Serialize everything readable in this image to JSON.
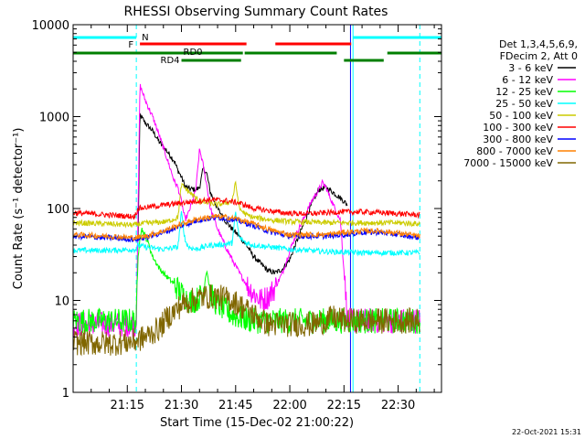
{
  "chart_data": {
    "type": "line",
    "title": "RHESSI Observing Summary Count Rates",
    "xlabel": "Start Time (15-Dec-02 21:00:22)",
    "ylabel": "Count Rate (s⁻¹ detector⁻¹)",
    "yscale": "log",
    "ylim": [
      1,
      10000
    ],
    "xlim": [
      0,
      102
    ],
    "x_unit": "minutes after 21:00:22",
    "x_ticks": [
      {
        "t": 15,
        "label": "21:15"
      },
      {
        "t": 30,
        "label": "21:30"
      },
      {
        "t": 45,
        "label": "21:45"
      },
      {
        "t": 60,
        "label": "22:00"
      },
      {
        "t": 75,
        "label": "22:15"
      },
      {
        "t": 90,
        "label": "22:30"
      }
    ],
    "y_ticks": [
      {
        "v": 1,
        "label": "1"
      },
      {
        "v": 10,
        "label": "10"
      },
      {
        "v": 100,
        "label": "100"
      },
      {
        "v": 1000,
        "label": "1000"
      },
      {
        "v": 10000,
        "label": "10000"
      }
    ],
    "legend_header": [
      "Det 1,3,4,5,6,9,",
      "FDecim 2, Att 0"
    ],
    "series": [
      {
        "name": "3 - 6 keV",
        "color": "#000000",
        "t": [
          18,
          18.5,
          20,
          22,
          24,
          26,
          28,
          29,
          30,
          31,
          32,
          34,
          35,
          36,
          37,
          38,
          40,
          42,
          44,
          46,
          48,
          50,
          52,
          54,
          56,
          58,
          60,
          62,
          64,
          66,
          68,
          70,
          72,
          74,
          76
        ],
        "v": [
          50,
          1050,
          850,
          700,
          520,
          420,
          330,
          260,
          220,
          175,
          165,
          160,
          170,
          270,
          240,
          150,
          100,
          75,
          60,
          50,
          40,
          30,
          25,
          21,
          20,
          22,
          28,
          45,
          70,
          110,
          160,
          170,
          150,
          130,
          110
        ]
      },
      {
        "name": "6 - 12 keV",
        "color": "#ff00ff",
        "t": [
          0,
          17.5,
          18,
          18.5,
          20,
          22,
          24,
          26,
          28,
          29,
          30,
          31,
          32,
          34,
          35,
          36,
          37,
          38,
          40,
          42,
          44,
          46,
          48,
          50,
          52,
          54,
          56,
          58,
          60,
          62,
          64,
          66,
          68,
          69,
          70,
          72,
          74,
          76,
          80,
          90,
          96
        ],
        "v": [
          5.5,
          5.5,
          100,
          2200,
          1500,
          1000,
          600,
          350,
          200,
          170,
          120,
          75,
          90,
          160,
          440,
          300,
          180,
          100,
          60,
          40,
          28,
          20,
          15,
          12,
          10,
          11,
          14,
          20,
          35,
          55,
          80,
          120,
          160,
          190,
          170,
          110,
          75,
          6,
          6,
          6,
          6
        ]
      },
      {
        "name": "12 - 25 keV",
        "color": "#00ff00",
        "t": [
          0,
          17.5,
          18,
          18.5,
          19,
          20,
          21,
          22,
          24,
          26,
          28,
          30,
          32,
          34,
          36,
          37,
          38,
          39,
          40,
          42,
          44,
          46,
          50,
          60,
          70,
          80,
          90,
          96
        ],
        "v": [
          6,
          6,
          30,
          50,
          60,
          50,
          40,
          30,
          22,
          18,
          15,
          12,
          10,
          10,
          12,
          22,
          12,
          10,
          9,
          8,
          7,
          6.5,
          6,
          6,
          6,
          6,
          6,
          6
        ]
      },
      {
        "name": "25 - 50 keV",
        "color": "#00ffff",
        "t": [
          0,
          10,
          17.5,
          18,
          20,
          25,
          29,
          30,
          31,
          32,
          34,
          36,
          38,
          40,
          44,
          45,
          46,
          48,
          50,
          55,
          60,
          65,
          70,
          80,
          90,
          96
        ],
        "v": [
          35,
          35,
          36,
          40,
          38,
          36,
          38,
          90,
          45,
          38,
          36,
          38,
          40,
          40,
          42,
          90,
          48,
          42,
          40,
          38,
          36,
          35,
          34,
          33,
          33,
          33
        ]
      },
      {
        "name": "50 - 100 keV",
        "color": "#cccc00",
        "t": [
          0,
          10,
          17,
          18,
          22,
          26,
          29,
          30,
          35,
          40,
          44,
          45,
          46,
          48,
          50,
          55,
          60,
          70,
          80,
          90,
          96
        ],
        "v": [
          70,
          68,
          66,
          68,
          70,
          72,
          80,
          180,
          120,
          110,
          120,
          190,
          100,
          85,
          80,
          75,
          72,
          70,
          70,
          70,
          68
        ]
      },
      {
        "name": "100 - 300 keV",
        "color": "#ff0000",
        "t": [
          0,
          10,
          17,
          18,
          22,
          26,
          30,
          34,
          38,
          42,
          46,
          50,
          54,
          58,
          62,
          66,
          70,
          74,
          80,
          86,
          90,
          96
        ],
        "v": [
          90,
          85,
          82,
          100,
          105,
          110,
          115,
          120,
          125,
          122,
          115,
          100,
          95,
          90,
          88,
          88,
          90,
          92,
          92,
          90,
          88,
          85
        ]
      },
      {
        "name": "300 - 800 keV",
        "color": "#0000ff",
        "t": [
          0,
          10,
          17,
          20,
          25,
          30,
          35,
          40,
          45,
          50,
          55,
          60,
          65,
          70,
          75,
          80,
          85,
          90,
          96
        ],
        "v": [
          50,
          48,
          46,
          48,
          55,
          65,
          75,
          80,
          75,
          65,
          55,
          50,
          50,
          50,
          52,
          55,
          55,
          52,
          48
        ]
      },
      {
        "name": "800 - 7000 keV",
        "color": "#ff8000",
        "t": [
          0,
          10,
          17,
          20,
          25,
          30,
          35,
          40,
          45,
          50,
          55,
          60,
          65,
          70,
          75,
          80,
          85,
          90,
          96
        ],
        "v": [
          52,
          50,
          48,
          50,
          57,
          68,
          78,
          82,
          78,
          68,
          58,
          52,
          52,
          52,
          55,
          57,
          57,
          54,
          50
        ]
      },
      {
        "name": "7000 - 15000 keV",
        "color": "#806600",
        "t": [
          0,
          10,
          17,
          20,
          24,
          26,
          28,
          30,
          33,
          36,
          40,
          44,
          46,
          50,
          54,
          60,
          66,
          70,
          72,
          76,
          80,
          90,
          96
        ],
        "v": [
          3.5,
          3.4,
          3.6,
          4,
          5,
          6.5,
          7.5,
          9,
          10,
          11,
          11,
          10,
          9,
          7,
          5.5,
          5.5,
          5.5,
          6,
          6.5,
          6,
          6,
          6,
          6
        ]
      }
    ],
    "state_bars": [
      {
        "name": "N",
        "color": "#00ffff",
        "segments": [
          [
            0,
            17.5
          ],
          [
            77.5,
            102
          ]
        ]
      },
      {
        "name": "F",
        "color": "#ff0000",
        "segments": [
          [
            18.5,
            48
          ],
          [
            56,
            77
          ]
        ]
      },
      {
        "name": "RD0",
        "color": "#007f00",
        "segments": [
          [
            0,
            47
          ],
          [
            47.5,
            73
          ],
          [
            87,
            102
          ]
        ]
      },
      {
        "name": "RD4",
        "color": "#007f00",
        "segments": [
          [
            30,
            46.5
          ],
          [
            75,
            86
          ]
        ]
      }
    ],
    "vlines_solid": [
      {
        "t": 0,
        "color": "#00ffff"
      },
      {
        "t": 77.5,
        "color": "#00ffff"
      },
      {
        "t": 76.8,
        "color": "#0000ff"
      }
    ],
    "vlines_dashed": [
      {
        "t": 17.5,
        "color": "#00ffff"
      },
      {
        "t": 96,
        "color": "#00ffff"
      }
    ]
  },
  "footer": {
    "date": "22-Oct-2021 15:31"
  }
}
